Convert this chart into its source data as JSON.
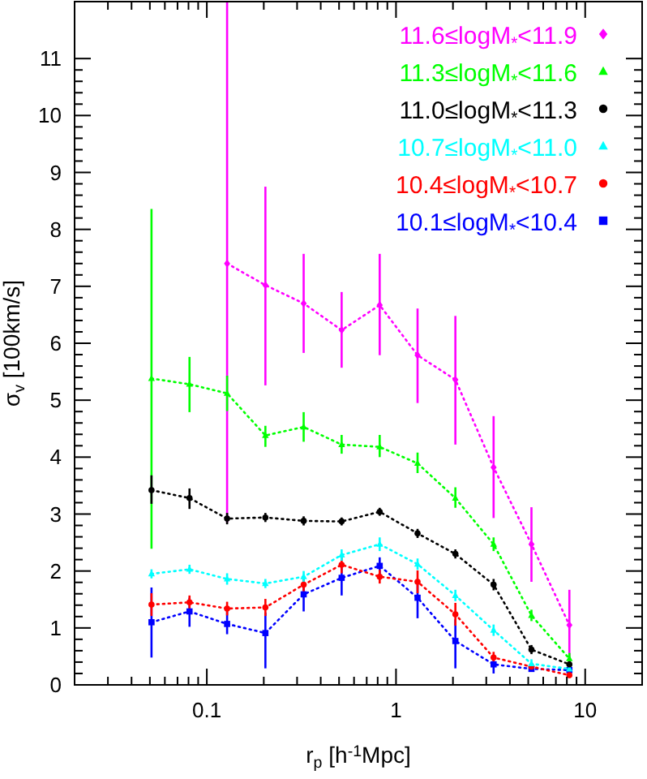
{
  "chart_data": {
    "type": "line",
    "xlabel": "r$_{p}$ [h$^{-1}$Mpc]",
    "ylabel": "σ$_{v}$ [100km/s]",
    "log": "x",
    "xlim": [
      0.02,
      20
    ],
    "ylim": [
      0,
      12
    ],
    "xticks": [
      {
        "value": 0.02,
        "label": null
      },
      {
        "value": 0.03,
        "label": null
      },
      {
        "value": 0.04,
        "label": null
      },
      {
        "value": 0.05,
        "label": null
      },
      {
        "value": 0.06,
        "label": null
      },
      {
        "value": 0.07,
        "label": null
      },
      {
        "value": 0.08,
        "label": null
      },
      {
        "value": 0.09,
        "label": null
      },
      0.1,
      {
        "value": 0.2,
        "label": null
      },
      {
        "value": 0.3,
        "label": null
      },
      {
        "value": 0.4,
        "label": null
      },
      {
        "value": 0.5,
        "label": null
      },
      {
        "value": 0.6,
        "label": null
      },
      {
        "value": 0.7,
        "label": null
      },
      {
        "value": 0.8,
        "label": null
      },
      {
        "value": 0.9,
        "label": null
      },
      1,
      {
        "value": 2,
        "label": null
      },
      {
        "value": 3,
        "label": null
      },
      {
        "value": 4,
        "label": null
      },
      {
        "value": 5,
        "label": null
      },
      {
        "value": 6,
        "label": null
      },
      {
        "value": 7,
        "label": null
      },
      {
        "value": 8,
        "label": null
      },
      {
        "value": 9,
        "label": null
      },
      10,
      {
        "value": 20,
        "label": null
      }
    ],
    "yticks": [
      0,
      1,
      2,
      3,
      4,
      5,
      6,
      7,
      8,
      9,
      10,
      11
    ],
    "x": [
      0.051,
      0.081,
      0.128,
      0.204,
      0.325,
      0.516,
      0.82,
      1.3,
      2.06,
      3.28,
      5.2,
      8.25
    ],
    "line_style": "dotted",
    "legend": "top right",
    "grid": false,
    "series": [
      {
        "name": "11.6≤logM$_{*}$<11.9",
        "color": "#ff00ff",
        "marker": "diamond",
        "values": [
          null,
          null,
          7.4,
          7.02,
          6.7,
          6.23,
          6.67,
          5.79,
          5.36,
          3.82,
          2.47,
          1.05
        ],
        "errors": [
          null,
          null,
          [
            2.85,
            12
          ],
          [
            5.26,
            8.75
          ],
          [
            5.83,
            7.57
          ],
          [
            5.57,
            6.9
          ],
          [
            5.79,
            7.57
          ],
          [
            4.95,
            6.61
          ],
          [
            4.22,
            6.48
          ],
          [
            2.93,
            4.72
          ],
          [
            1.81,
            3.12
          ],
          [
            0.2,
            1.67
          ]
        ]
      },
      {
        "name": "11.3≤logM$_{*}$<11.6",
        "color": "#00ff00",
        "marker": "triangle",
        "values": [
          5.38,
          5.28,
          5.12,
          4.38,
          4.53,
          4.22,
          4.18,
          3.89,
          3.28,
          2.47,
          1.22,
          0.46
        ],
        "errors": [
          [
            2.39,
            8.36
          ],
          [
            4.79,
            5.76
          ],
          [
            4.81,
            5.43
          ],
          [
            4.18,
            4.55
          ],
          [
            4.27,
            4.79
          ],
          [
            4.06,
            4.39
          ],
          [
            4.0,
            4.39
          ],
          [
            3.72,
            4.08
          ],
          [
            3.11,
            3.47
          ],
          0.12,
          0.1,
          0.1
        ]
      },
      {
        "name": "11.0≤logM$_{*}$<11.3",
        "color": "#000000",
        "marker": "circle",
        "values": [
          3.42,
          3.28,
          2.92,
          2.94,
          2.88,
          2.87,
          3.04,
          2.66,
          2.3,
          1.76,
          0.62,
          0.36
        ],
        "errors": [
          [
            3.18,
            3.68
          ],
          [
            3.09,
            3.45
          ],
          0.1,
          0.08,
          0.08,
          0.07,
          0.07,
          0.08,
          0.08,
          0.1,
          0.08,
          0.06
        ]
      },
      {
        "name": "10.7≤logM$_{*}$<11.0",
        "color": "#00ffff",
        "marker": "triangle",
        "values": [
          1.95,
          2.03,
          1.86,
          1.78,
          1.9,
          2.28,
          2.47,
          2.12,
          1.57,
          0.96,
          0.37,
          0.28
        ],
        "errors": [
          0.08,
          0.08,
          0.1,
          0.08,
          0.1,
          0.1,
          0.12,
          0.1,
          0.1,
          0.1,
          0.08,
          0.08
        ]
      },
      {
        "name": "10.4≤logM$_{*}$<10.7",
        "color": "#ff0000",
        "marker": "circle",
        "values": [
          1.41,
          1.45,
          1.34,
          1.36,
          1.76,
          2.11,
          1.9,
          1.81,
          1.24,
          0.48,
          0.32,
          0.17
        ],
        "errors": [
          0.2,
          0.12,
          0.12,
          0.15,
          0.15,
          0.15,
          0.12,
          0.2,
          0.2,
          0.1,
          0.05,
          0.05
        ]
      },
      {
        "name": "10.1≤logM$_{*}$<10.4",
        "color": "#0000ff",
        "marker": "square",
        "values": [
          1.1,
          1.29,
          1.07,
          0.91,
          1.59,
          1.88,
          2.09,
          1.53,
          0.77,
          0.36,
          0.28,
          0.26
        ],
        "errors": [
          [
            0.48,
            1.71
          ],
          [
            1.02,
            1.53
          ],
          [
            0.89,
            1.29
          ],
          [
            0.29,
            1.27
          ],
          [
            1.29,
            1.86
          ],
          [
            1.57,
            2.14
          ],
          0.15,
          [
            1.17,
            1.76
          ],
          [
            0.29,
            1.15
          ],
          [
            0.2,
            0.51
          ],
          0.03,
          0.05
        ]
      }
    ]
  }
}
